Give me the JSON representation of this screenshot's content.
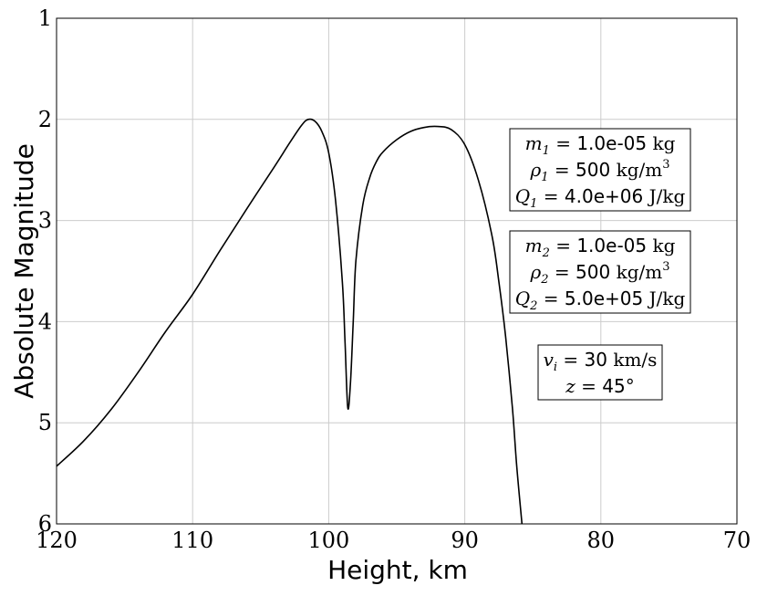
{
  "chart_data": {
    "type": "line",
    "title": "",
    "xlabel": "Height, km",
    "ylabel": "Absolute Magnitude",
    "xlim": [
      120,
      70
    ],
    "ylim": [
      6,
      1
    ],
    "x_inverted": true,
    "y_inverted": true,
    "grid": true,
    "xticks": [
      "120",
      "110",
      "100",
      "90",
      "80",
      "70"
    ],
    "yticks": [
      "1",
      "2",
      "3",
      "4",
      "5",
      "6"
    ],
    "series": [
      {
        "color": "#000000",
        "x": [
          120,
          118,
          116,
          114,
          112,
          110,
          108,
          106,
          104,
          103,
          102,
          101.5,
          101,
          100.5,
          100,
          99.5,
          99,
          98.8,
          98.6,
          98.4,
          98.2,
          98,
          97.5,
          97,
          96.5,
          96,
          95,
          94,
          93,
          92,
          91,
          90,
          89,
          88,
          87.5,
          87,
          86.5,
          86.2,
          85.8
        ],
        "y": [
          5.43,
          5.18,
          4.87,
          4.5,
          4.1,
          3.73,
          3.3,
          2.88,
          2.47,
          2.26,
          2.06,
          2.0,
          2.02,
          2.12,
          2.33,
          2.8,
          3.6,
          4.2,
          4.85,
          4.6,
          4.0,
          3.4,
          2.85,
          2.58,
          2.42,
          2.32,
          2.2,
          2.12,
          2.08,
          2.07,
          2.1,
          2.25,
          2.6,
          3.15,
          3.6,
          4.15,
          4.85,
          5.4,
          6.0
        ]
      }
    ],
    "annotations": [
      {
        "lines": [
          {
            "sym": "m",
            "sub": "1",
            "op": " = ",
            "val": "1.0e-05",
            "unit": " kg",
            "sup": ""
          },
          {
            "sym": "ρ",
            "sub": "1",
            "op": " = ",
            "val": "500",
            "unit": " kg/m",
            "sup": "3"
          },
          {
            "sym": "Q",
            "sub": "1",
            "op": " = ",
            "val": "4.0e+06",
            "unit": " J/kg",
            "sup": ""
          }
        ]
      },
      {
        "lines": [
          {
            "sym": "m",
            "sub": "2",
            "op": " = ",
            "val": "1.0e-05",
            "unit": " kg",
            "sup": ""
          },
          {
            "sym": "ρ",
            "sub": "2",
            "op": " = ",
            "val": "500",
            "unit": " kg/m",
            "sup": "3"
          },
          {
            "sym": "Q",
            "sub": "2",
            "op": " = ",
            "val": "5.0e+05",
            "unit": " J/kg",
            "sup": ""
          }
        ]
      },
      {
        "lines": [
          {
            "sym": "v",
            "sub": "i",
            "op": " = ",
            "val": "30",
            "unit": " km/s",
            "sup": ""
          },
          {
            "sym": "z",
            "sub": "",
            "op": " = ",
            "val": "45°",
            "unit": "",
            "sup": ""
          }
        ]
      }
    ]
  }
}
